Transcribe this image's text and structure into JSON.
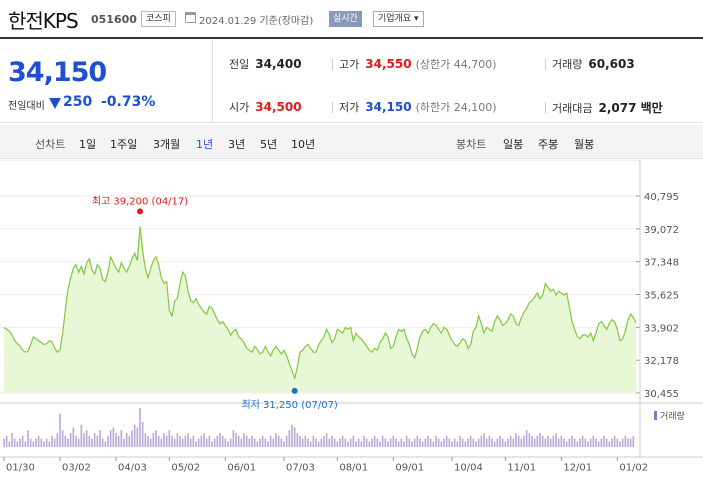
{
  "header": {
    "stock_name": "한전KPS",
    "stock_code": "051600",
    "market": "코스피",
    "date_text": "2024.01.29  기준(장마감)",
    "realtime_label": "실시간",
    "company_info_label": "기업개요"
  },
  "summary": {
    "current_price": "34,150",
    "change_label": "전일대비",
    "change_value": "250",
    "change_rate": "-0.73%",
    "prev_close_label": "전일",
    "prev_close": "34,400",
    "open_label": "시가",
    "open": "34,500",
    "high_label": "고가",
    "high": "34,550",
    "upper_limit": "(상한가 44,700)",
    "low_label": "저가",
    "low": "34,150",
    "lower_limit": "(하한가 24,100)",
    "volume_label": "거래량",
    "volume": "60,603",
    "amount_label": "거래대금",
    "amount": "2,077 백만"
  },
  "period_bar": {
    "line_chart_label": "선차트",
    "periods": [
      "1일",
      "1주일",
      "3개월",
      "1년",
      "3년",
      "5년",
      "10년"
    ],
    "selected_period": "1년",
    "candle_label": "봉차트",
    "candle_options": [
      "일봉",
      "주봉",
      "월봉"
    ]
  },
  "chart_data": {
    "type": "area",
    "series_color": "#82c93c",
    "fill_color": "#e8f7d6",
    "y_ticks": [
      "40,795",
      "39,072",
      "37,348",
      "35,625",
      "33,902",
      "32,178",
      "30,455"
    ],
    "ylim": [
      30455,
      40795
    ],
    "x_ticks": [
      "01/30",
      "03/02",
      "04/03",
      "05/02",
      "06/01",
      "07/03",
      "08/01",
      "09/01",
      "10/04",
      "11/01",
      "12/01",
      "01/02"
    ],
    "x_tick_index": [
      0,
      21,
      42,
      62,
      83,
      105,
      125,
      146,
      168,
      188,
      209,
      230
    ],
    "high_annotation": "최고 39,200 (04/17)",
    "high_index": 51,
    "high_value": 39200,
    "low_annotation": "최저 31,250 (07/07)",
    "low_index": 109,
    "low_value": 31250,
    "volume_legend": "거래량",
    "prices": [
      33900,
      33800,
      33700,
      33500,
      33200,
      33050,
      32900,
      32700,
      32600,
      32650,
      33000,
      33400,
      33300,
      33200,
      33100,
      33000,
      33050,
      33200,
      33150,
      32800,
      32600,
      32700,
      33600,
      34800,
      35900,
      36500,
      37000,
      37200,
      36800,
      37100,
      36700,
      37300,
      37500,
      36900,
      36700,
      37200,
      37000,
      36400,
      36300,
      36800,
      37600,
      37300,
      37000,
      36800,
      37300,
      37000,
      36800,
      37100,
      37500,
      37800,
      37400,
      39200,
      37900,
      37000,
      36500,
      37000,
      37400,
      37600,
      37200,
      36500,
      36200,
      36300,
      34800,
      34500,
      35300,
      35400,
      36200,
      36800,
      36600,
      35800,
      35300,
      35200,
      35400,
      35100,
      34900,
      34700,
      34600,
      35000,
      34900,
      34600,
      34300,
      34100,
      34200,
      34000,
      33800,
      33500,
      33700,
      33800,
      33400,
      33300,
      33100,
      32800,
      32700,
      32600,
      32900,
      32750,
      32500,
      32600,
      32900,
      32600,
      32400,
      32700,
      32900,
      32700,
      32500,
      32700,
      32400,
      32000,
      31600,
      31250,
      31800,
      32600,
      32700,
      32900,
      33000,
      32800,
      32600,
      32600,
      33000,
      33200,
      33400,
      33800,
      33500,
      33100,
      33300,
      33800,
      33700,
      33600,
      33900,
      33800,
      33900,
      33200,
      33600,
      33400,
      33300,
      33100,
      32900,
      32700,
      32600,
      32800,
      32700,
      33100,
      33300,
      33600,
      33400,
      32800,
      32900,
      33400,
      33800,
      33700,
      33800,
      33300,
      33000,
      32500,
      32300,
      32800,
      33400,
      33700,
      33800,
      33600,
      33900,
      34100,
      34000,
      33800,
      33600,
      33900,
      33800,
      33500,
      33200,
      33000,
      32900,
      33100,
      33300,
      33200,
      32800,
      33000,
      33700,
      33900,
      34500,
      34100,
      33600,
      33900,
      33800,
      33700,
      34200,
      34500,
      34300,
      34000,
      34100,
      34300,
      34600,
      34500,
      34100,
      34000,
      34400,
      34700,
      34900,
      35200,
      35300,
      35500,
      35700,
      35400,
      35600,
      36200,
      36000,
      35800,
      35900,
      35600,
      35800,
      35700,
      35600,
      35700,
      35000,
      34200,
      33800,
      33400,
      33300,
      33500,
      33500,
      33400,
      33600,
      33200,
      33600,
      34100,
      34200,
      34000,
      33800,
      34100,
      34300,
      34200,
      33800,
      33200,
      33300,
      33700,
      34300,
      34600,
      34400,
      34150
    ],
    "volumes": [
      3,
      4,
      2,
      5,
      3,
      2,
      3,
      4,
      2,
      6,
      3,
      2,
      3,
      4,
      3,
      2,
      3,
      2,
      4,
      3,
      5,
      12,
      6,
      4,
      3,
      5,
      7,
      4,
      3,
      8,
      5,
      6,
      4,
      3,
      5,
      4,
      6,
      3,
      2,
      4,
      6,
      7,
      5,
      4,
      6,
      3,
      5,
      4,
      6,
      8,
      7,
      14,
      9,
      5,
      4,
      3,
      5,
      6,
      4,
      3,
      5,
      4,
      6,
      4,
      3,
      5,
      4,
      3,
      4,
      5,
      3,
      4,
      2,
      3,
      4,
      5,
      3,
      4,
      2,
      3,
      4,
      5,
      4,
      3,
      2,
      3,
      6,
      5,
      4,
      3,
      5,
      4,
      3,
      4,
      3,
      2,
      3,
      4,
      3,
      2,
      4,
      3,
      5,
      4,
      3,
      2,
      4,
      6,
      8,
      7,
      5,
      4,
      3,
      4,
      3,
      2,
      4,
      3,
      2,
      3,
      4,
      5,
      3,
      4,
      3,
      2,
      3,
      4,
      3,
      2,
      3,
      4,
      2,
      3,
      2,
      4,
      3,
      2,
      3,
      4,
      3,
      2,
      4,
      3,
      2,
      3,
      4,
      3,
      2,
      3,
      2,
      4,
      3,
      2,
      3,
      4,
      3,
      2,
      3,
      4,
      3,
      2,
      4,
      3,
      2,
      3,
      4,
      3,
      2,
      3,
      2,
      4,
      3,
      2,
      3,
      4,
      3,
      2,
      3,
      4,
      5,
      3,
      4,
      3,
      2,
      3,
      4,
      3,
      2,
      3,
      4,
      3,
      5,
      4,
      3,
      4,
      6,
      5,
      4,
      3,
      4,
      5,
      4,
      3,
      4,
      3,
      4,
      5,
      3,
      4,
      3,
      2,
      3,
      4,
      3,
      2,
      3,
      4,
      3,
      2,
      3,
      4,
      3,
      2,
      3,
      4,
      3,
      2,
      3,
      4,
      3,
      2,
      3,
      4,
      3,
      3,
      4
    ]
  }
}
